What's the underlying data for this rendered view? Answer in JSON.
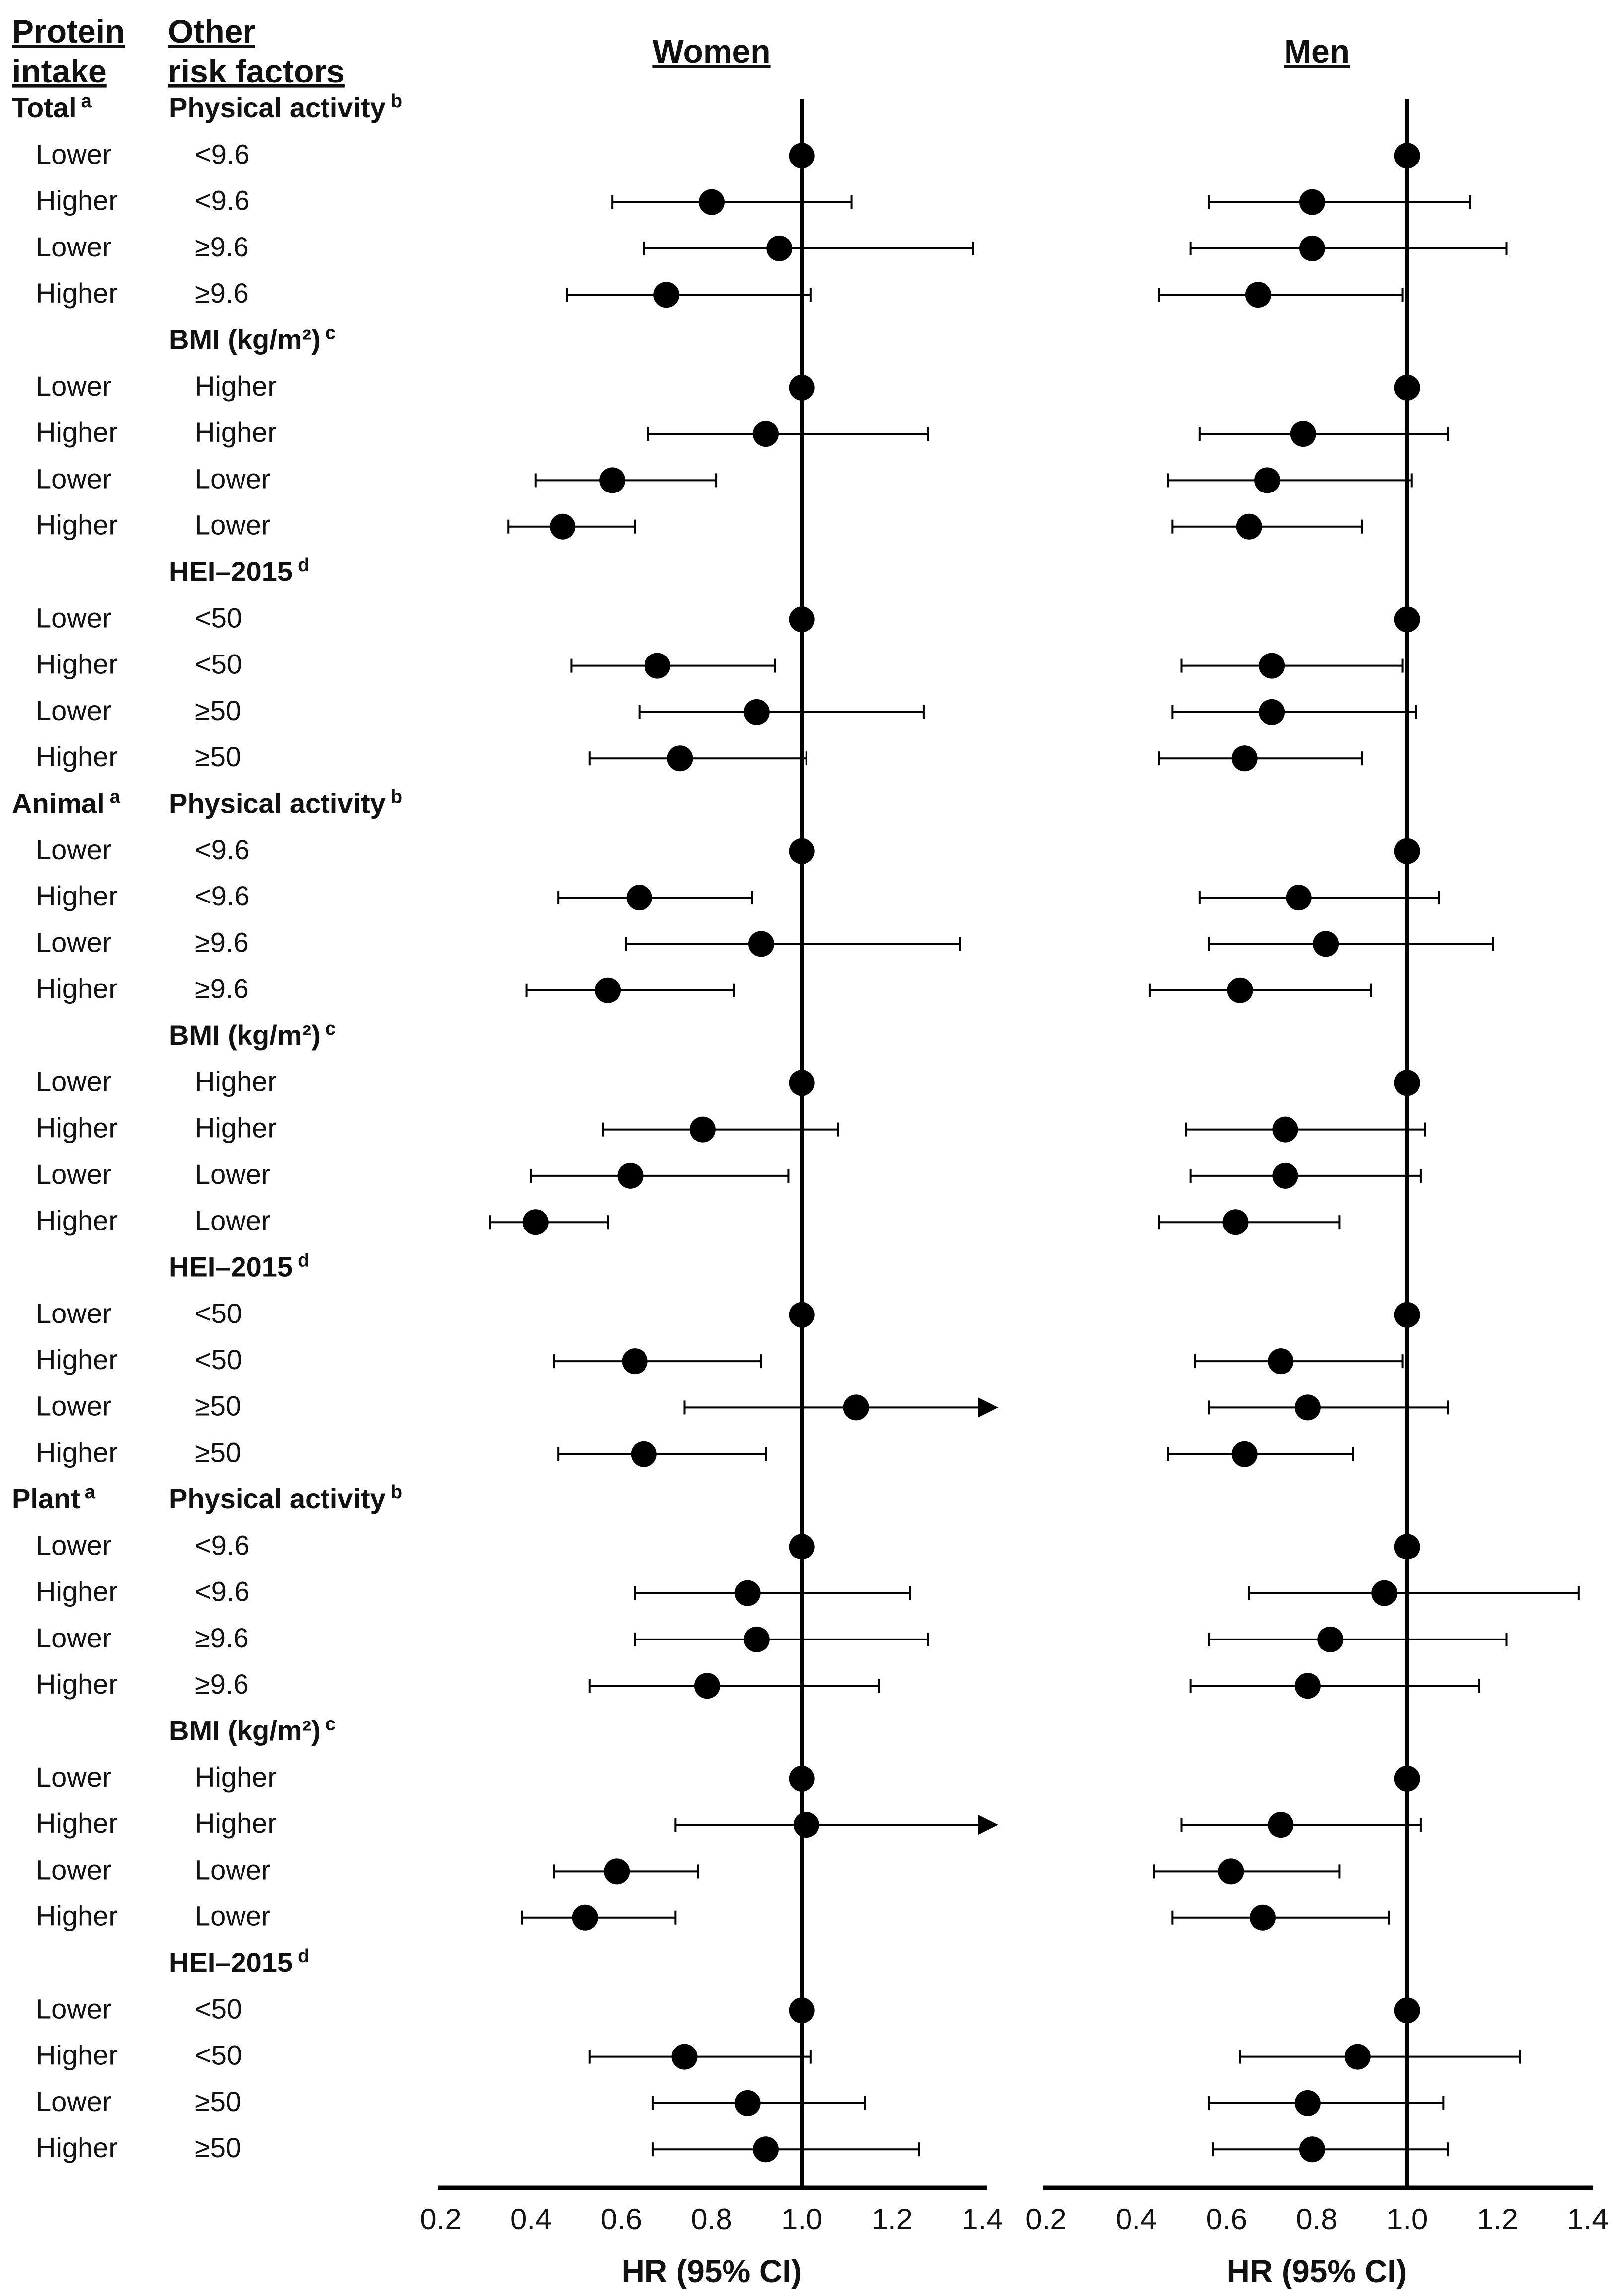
{
  "chart_data": {
    "type": "forest",
    "column_headers": {
      "protein": "Protein intake",
      "risk": "Other risk factors"
    },
    "panels": [
      "Women",
      "Men"
    ],
    "xlabel": "HR (95% CI)",
    "xlim": [
      0.2,
      1.4
    ],
    "xticks": [
      "0.2",
      "0.4",
      "0.6",
      "0.8",
      "1.0",
      "1.2",
      "1.4"
    ],
    "reference_line": 1.0,
    "sections": [
      {
        "protein": "Total",
        "protein_sup": "a",
        "factors": [
          {
            "label": "Physical activity",
            "sup": "b",
            "rows": [
              {
                "intake": "Lower",
                "level": "<9.6",
                "women": [
                  1.0,
                  1.0,
                  1.0
                ],
                "men": [
                  1.0,
                  1.0,
                  1.0
                ]
              },
              {
                "intake": "Higher",
                "level": "<9.6",
                "women": [
                  0.8,
                  0.58,
                  1.11
                ],
                "men": [
                  0.79,
                  0.56,
                  1.14
                ]
              },
              {
                "intake": "Lower",
                "level": "≥9.6",
                "women": [
                  0.95,
                  0.65,
                  1.38
                ],
                "men": [
                  0.79,
                  0.52,
                  1.22
                ]
              },
              {
                "intake": "Higher",
                "level": "≥9.6",
                "women": [
                  0.7,
                  0.48,
                  1.02
                ],
                "men": [
                  0.67,
                  0.45,
                  0.99
                ]
              }
            ]
          },
          {
            "label": "BMI (kg/m²)",
            "sup": "c",
            "rows": [
              {
                "intake": "Lower",
                "level": "Higher",
                "women": [
                  1.0,
                  1.0,
                  1.0
                ],
                "men": [
                  1.0,
                  1.0,
                  1.0
                ]
              },
              {
                "intake": "Higher",
                "level": "Higher",
                "women": [
                  0.92,
                  0.66,
                  1.28
                ],
                "men": [
                  0.77,
                  0.54,
                  1.09
                ]
              },
              {
                "intake": "Lower",
                "level": "Lower",
                "women": [
                  0.58,
                  0.41,
                  0.81
                ],
                "men": [
                  0.69,
                  0.47,
                  1.01
                ]
              },
              {
                "intake": "Higher",
                "level": "Lower",
                "women": [
                  0.47,
                  0.35,
                  0.63
                ],
                "men": [
                  0.65,
                  0.48,
                  0.9
                ]
              }
            ]
          },
          {
            "label": "HEI–2015",
            "sup": "d",
            "rows": [
              {
                "intake": "Lower",
                "level": "<50",
                "women": [
                  1.0,
                  1.0,
                  1.0
                ],
                "men": [
                  1.0,
                  1.0,
                  1.0
                ]
              },
              {
                "intake": "Higher",
                "level": "<50",
                "women": [
                  0.68,
                  0.49,
                  0.94
                ],
                "men": [
                  0.7,
                  0.5,
                  0.99
                ]
              },
              {
                "intake": "Lower",
                "level": "≥50",
                "women": [
                  0.9,
                  0.64,
                  1.27
                ],
                "men": [
                  0.7,
                  0.48,
                  1.02
                ]
              },
              {
                "intake": "Higher",
                "level": "≥50",
                "women": [
                  0.73,
                  0.53,
                  1.01
                ],
                "men": [
                  0.64,
                  0.45,
                  0.9
                ]
              }
            ]
          }
        ]
      },
      {
        "protein": "Animal",
        "protein_sup": "a",
        "factors": [
          {
            "label": "Physical activity",
            "sup": "b",
            "rows": [
              {
                "intake": "Lower",
                "level": "<9.6",
                "women": [
                  1.0,
                  1.0,
                  1.0
                ],
                "men": [
                  1.0,
                  1.0,
                  1.0
                ]
              },
              {
                "intake": "Higher",
                "level": "<9.6",
                "women": [
                  0.64,
                  0.46,
                  0.89
                ],
                "men": [
                  0.76,
                  0.54,
                  1.07
                ]
              },
              {
                "intake": "Lower",
                "level": "≥9.6",
                "women": [
                  0.91,
                  0.61,
                  1.35
                ],
                "men": [
                  0.82,
                  0.56,
                  1.19
                ]
              },
              {
                "intake": "Higher",
                "level": "≥9.6",
                "women": [
                  0.57,
                  0.39,
                  0.85
                ],
                "men": [
                  0.63,
                  0.43,
                  0.92
                ]
              }
            ]
          },
          {
            "label": "BMI (kg/m²)",
            "sup": "c",
            "rows": [
              {
                "intake": "Lower",
                "level": "Higher",
                "women": [
                  1.0,
                  1.0,
                  1.0
                ],
                "men": [
                  1.0,
                  1.0,
                  1.0
                ]
              },
              {
                "intake": "Higher",
                "level": "Higher",
                "women": [
                  0.78,
                  0.56,
                  1.08
                ],
                "men": [
                  0.73,
                  0.51,
                  1.04
                ]
              },
              {
                "intake": "Lower",
                "level": "Lower",
                "women": [
                  0.62,
                  0.4,
                  0.97
                ],
                "men": [
                  0.73,
                  0.52,
                  1.03
                ]
              },
              {
                "intake": "Higher",
                "level": "Lower",
                "women": [
                  0.41,
                  0.31,
                  0.57
                ],
                "men": [
                  0.62,
                  0.45,
                  0.85
                ]
              }
            ]
          },
          {
            "label": "HEI–2015",
            "sup": "d",
            "rows": [
              {
                "intake": "Lower",
                "level": "<50",
                "women": [
                  1.0,
                  1.0,
                  1.0
                ],
                "men": [
                  1.0,
                  1.0,
                  1.0
                ]
              },
              {
                "intake": "Higher",
                "level": "<50",
                "women": [
                  0.63,
                  0.45,
                  0.91
                ],
                "men": [
                  0.72,
                  0.53,
                  0.99
                ]
              },
              {
                "intake": "Lower",
                "level": "≥50",
                "women": [
                  1.12,
                  0.74,
                  1.45
                ],
                "men": [
                  0.78,
                  0.56,
                  1.09
                ],
                "women_arrow": true
              },
              {
                "intake": "Higher",
                "level": "≥50",
                "women": [
                  0.65,
                  0.46,
                  0.92
                ],
                "men": [
                  0.64,
                  0.47,
                  0.88
                ]
              }
            ]
          }
        ]
      },
      {
        "protein": "Plant",
        "protein_sup": "a",
        "factors": [
          {
            "label": "Physical activity",
            "sup": "b",
            "rows": [
              {
                "intake": "Lower",
                "level": "<9.6",
                "women": [
                  1.0,
                  1.0,
                  1.0
                ],
                "men": [
                  1.0,
                  1.0,
                  1.0
                ]
              },
              {
                "intake": "Higher",
                "level": "<9.6",
                "women": [
                  0.88,
                  0.63,
                  1.24
                ],
                "men": [
                  0.95,
                  0.65,
                  1.38
                ]
              },
              {
                "intake": "Lower",
                "level": "≥9.6",
                "women": [
                  0.9,
                  0.63,
                  1.28
                ],
                "men": [
                  0.83,
                  0.56,
                  1.22
                ]
              },
              {
                "intake": "Higher",
                "level": "≥9.6",
                "women": [
                  0.79,
                  0.53,
                  1.17
                ],
                "men": [
                  0.78,
                  0.52,
                  1.16
                ]
              }
            ]
          },
          {
            "label": "BMI (kg/m²)",
            "sup": "c",
            "rows": [
              {
                "intake": "Lower",
                "level": "Higher",
                "women": [
                  1.0,
                  1.0,
                  1.0
                ],
                "men": [
                  1.0,
                  1.0,
                  1.0
                ]
              },
              {
                "intake": "Higher",
                "level": "Higher",
                "women": [
                  1.01,
                  0.72,
                  1.45
                ],
                "men": [
                  0.72,
                  0.5,
                  1.03
                ],
                "women_arrow": true
              },
              {
                "intake": "Lower",
                "level": "Lower",
                "women": [
                  0.59,
                  0.45,
                  0.77
                ],
                "men": [
                  0.61,
                  0.44,
                  0.85
                ]
              },
              {
                "intake": "Higher",
                "level": "Lower",
                "women": [
                  0.52,
                  0.38,
                  0.72
                ],
                "men": [
                  0.68,
                  0.48,
                  0.96
                ]
              }
            ]
          },
          {
            "label": "HEI–2015",
            "sup": "d",
            "rows": [
              {
                "intake": "Lower",
                "level": "<50",
                "women": [
                  1.0,
                  1.0,
                  1.0
                ],
                "men": [
                  1.0,
                  1.0,
                  1.0
                ]
              },
              {
                "intake": "Higher",
                "level": "<50",
                "women": [
                  0.74,
                  0.53,
                  1.02
                ],
                "men": [
                  0.89,
                  0.63,
                  1.25
                ]
              },
              {
                "intake": "Lower",
                "level": "≥50",
                "women": [
                  0.88,
                  0.67,
                  1.14
                ],
                "men": [
                  0.78,
                  0.56,
                  1.08
                ]
              },
              {
                "intake": "Higher",
                "level": "≥50",
                "women": [
                  0.92,
                  0.67,
                  1.26
                ],
                "men": [
                  0.79,
                  0.57,
                  1.09
                ]
              }
            ]
          }
        ]
      }
    ]
  }
}
